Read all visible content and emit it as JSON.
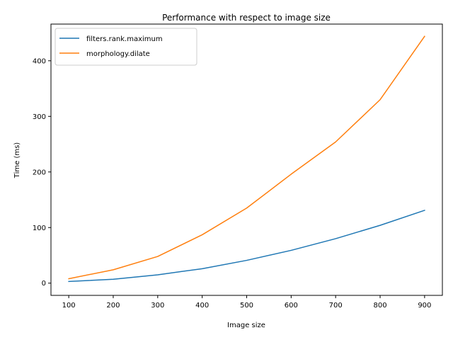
{
  "chart_data": {
    "type": "line",
    "title": "Performance with respect to image size",
    "xlabel": "Image size",
    "ylabel": "Time (ms)",
    "x": [
      100,
      200,
      300,
      400,
      500,
      600,
      700,
      800,
      900
    ],
    "xlim": [
      60,
      940
    ],
    "ylim": [
      -22,
      466
    ],
    "xticks": [
      100,
      200,
      300,
      400,
      500,
      600,
      700,
      800,
      900
    ],
    "yticks": [
      0,
      100,
      200,
      300,
      400
    ],
    "grid": false,
    "legend_position": "upper-left",
    "series": [
      {
        "name": "filters.rank.maximum",
        "color": "#1f77b4",
        "values": [
          3,
          7,
          15,
          26,
          41,
          59,
          80,
          104,
          131
        ]
      },
      {
        "name": "morphology.dilate",
        "color": "#ff7f0e",
        "values": [
          8,
          24,
          48,
          87,
          135,
          196,
          254,
          330,
          444
        ]
      }
    ]
  }
}
